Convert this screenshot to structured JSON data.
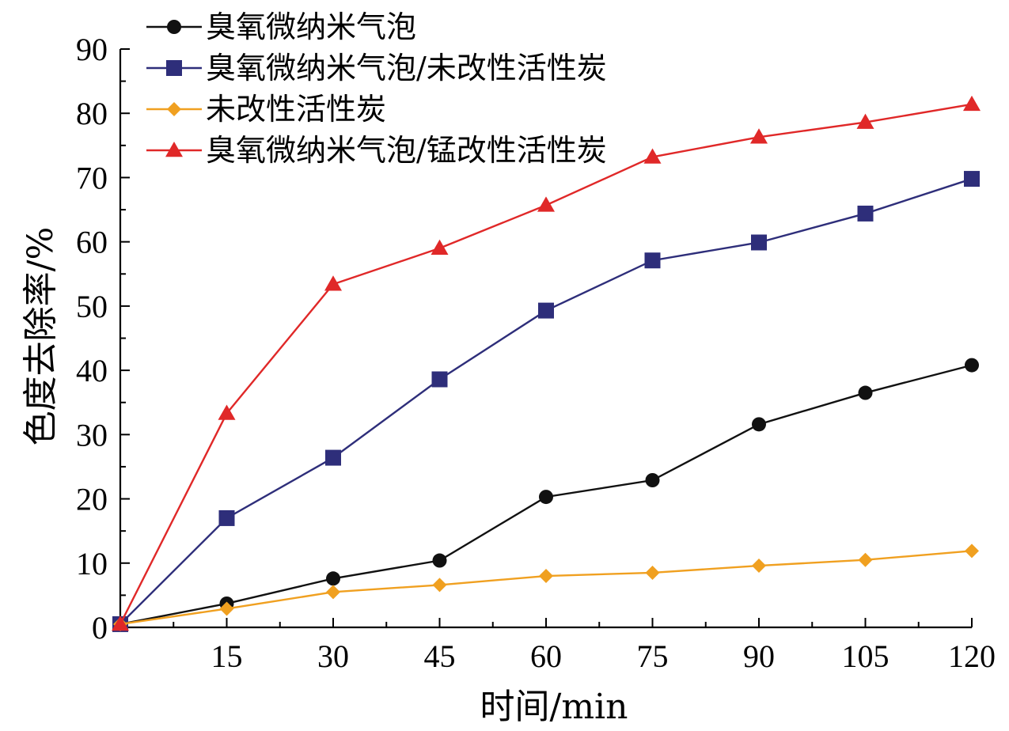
{
  "chart_data": {
    "type": "line",
    "xlabel": "时间/min",
    "ylabel": "色度去除率/%",
    "xlim": [
      0,
      120
    ],
    "ylim": [
      0,
      90
    ],
    "x_ticks": [
      "15",
      "30",
      "45",
      "60",
      "75",
      "90",
      "105",
      "120"
    ],
    "y_ticks": [
      "0",
      "10",
      "20",
      "30",
      "40",
      "50",
      "60",
      "70",
      "80",
      "90"
    ],
    "grid": false,
    "legend_position": "top-left",
    "x": [
      0,
      15,
      30,
      45,
      60,
      75,
      90,
      105,
      120
    ],
    "series": [
      {
        "name": "臭氧微纳米气泡",
        "color": "#111111",
        "marker": "circle",
        "values": [
          0.5,
          3.7,
          7.6,
          10.4,
          20.3,
          22.9,
          31.6,
          36.5,
          40.8
        ]
      },
      {
        "name": "臭氧微纳米气泡/未改性活性炭",
        "color": "#2e2e7a",
        "marker": "square",
        "values": [
          0.5,
          17.0,
          26.4,
          38.6,
          49.3,
          57.1,
          59.9,
          64.4,
          69.8
        ]
      },
      {
        "name": "未改性活性炭",
        "color": "#f0a020",
        "marker": "diamond",
        "values": [
          0.5,
          2.9,
          5.5,
          6.6,
          8.0,
          8.5,
          9.6,
          10.5,
          11.9
        ]
      },
      {
        "name": "臭氧微纳米气泡/锰改性活性炭",
        "color": "#e02828",
        "marker": "triangle",
        "values": [
          0.5,
          33.3,
          53.4,
          59.0,
          65.7,
          73.2,
          76.3,
          78.6,
          81.4
        ]
      }
    ]
  }
}
